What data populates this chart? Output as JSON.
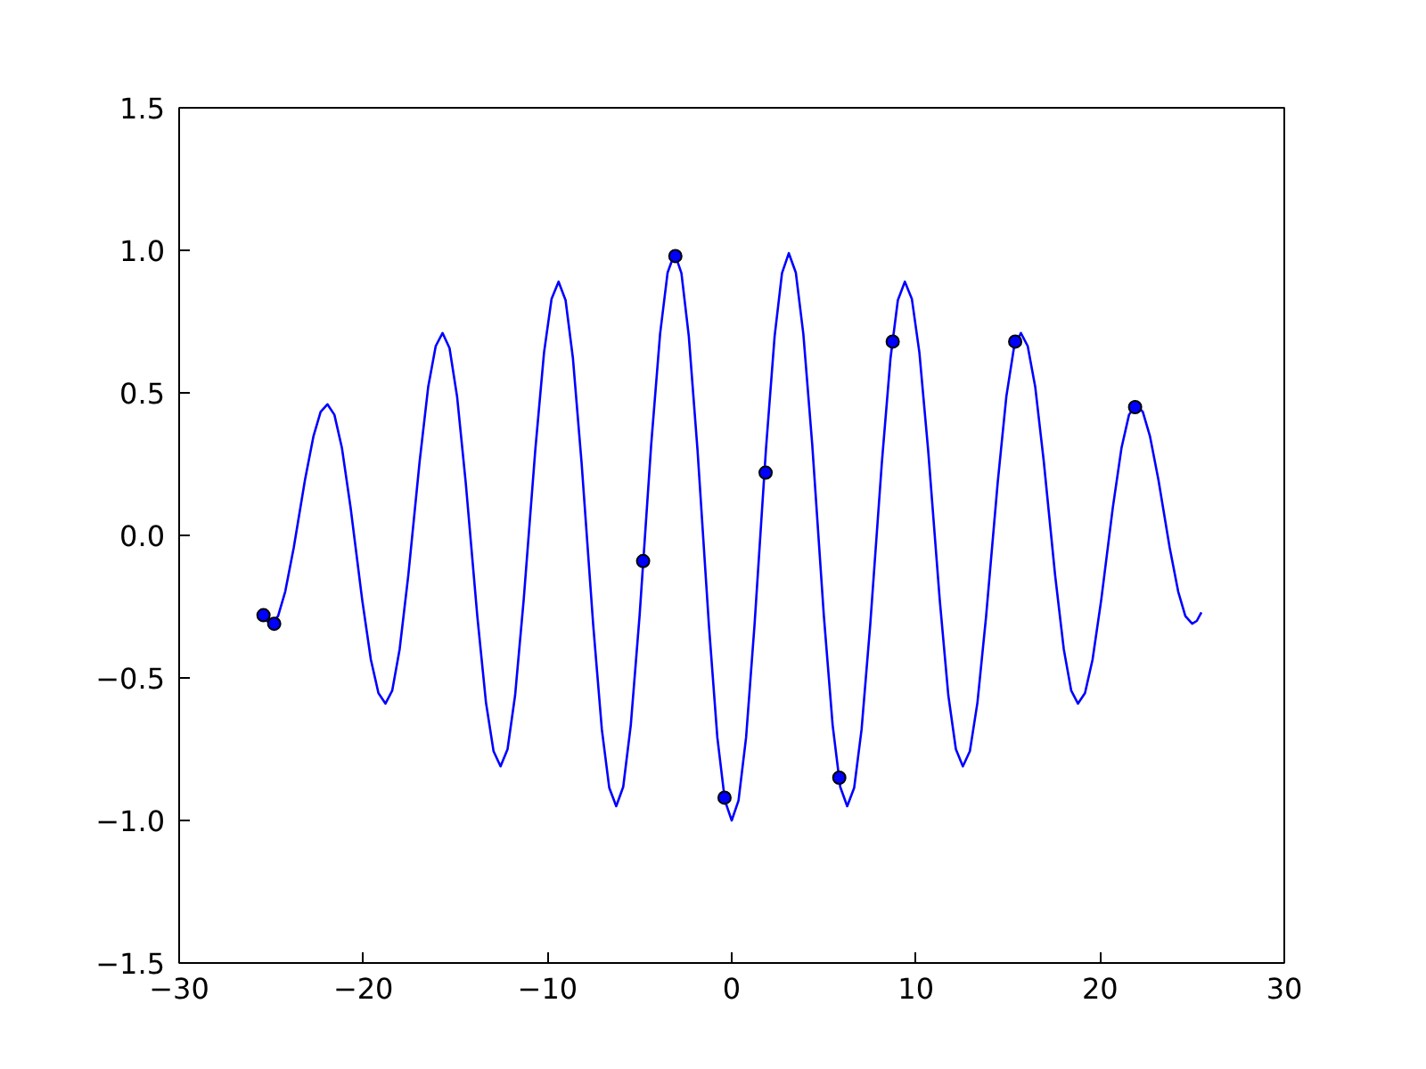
{
  "chart_data": {
    "type": "line",
    "xlim": [
      -30,
      30
    ],
    "ylim": [
      -1.5,
      1.5
    ],
    "xticks": [
      {
        "value": -30,
        "label": "−30"
      },
      {
        "value": -20,
        "label": "−20"
      },
      {
        "value": -10,
        "label": "−10"
      },
      0,
      10,
      20,
      30
    ],
    "yticks": [
      {
        "value": -1.5,
        "label": "−1.5"
      },
      {
        "value": -1,
        "label": "−1.0"
      },
      {
        "value": -0.5,
        "label": "−0.5"
      },
      {
        "value": 0,
        "label": "0.0"
      },
      0.5,
      {
        "value": 1,
        "label": "1.0"
      },
      1.5
    ],
    "grid": false,
    "series": [
      {
        "color": "#0000ff",
        "marker": "none",
        "line_style": "solid",
        "x": [
          -25.5,
          -25.25,
          -25.0,
          -24.63,
          -24.24,
          -23.78,
          -23.17,
          -22.71,
          -22.32,
          -21.95,
          -21.57,
          -21.16,
          -20.69,
          -20.06,
          -19.59,
          -19.18,
          -18.8,
          -18.43,
          -18.03,
          -17.56,
          -16.94,
          -16.48,
          -16.07,
          -15.7,
          -15.32,
          -14.91,
          -14.44,
          -13.81,
          -13.34,
          -12.93,
          -12.55,
          -12.17,
          -11.76,
          -11.29,
          -10.66,
          -10.19,
          -9.78,
          -9.4,
          -9.02,
          -8.62,
          -8.15,
          -7.52,
          -7.05,
          -6.65,
          -6.27,
          -5.89,
          -5.48,
          -5.0,
          -4.37,
          -3.89,
          -3.48,
          -3.1,
          -2.73,
          -2.33,
          -1.86,
          -1.24,
          -0.78,
          -0.37,
          0.0,
          0.37,
          0.78,
          1.24,
          1.86,
          2.33,
          2.73,
          3.1,
          3.48,
          3.89,
          4.37,
          5.0,
          5.48,
          5.89,
          6.27,
          6.65,
          7.05,
          7.52,
          8.15,
          8.62,
          9.02,
          9.4,
          9.78,
          10.19,
          10.66,
          11.29,
          11.76,
          12.17,
          12.55,
          12.93,
          13.34,
          13.81,
          14.44,
          14.91,
          15.32,
          15.7,
          16.07,
          16.48,
          16.94,
          17.56,
          18.03,
          18.43,
          18.8,
          19.18,
          19.59,
          20.06,
          20.69,
          21.16,
          21.57,
          21.95,
          22.32,
          22.71,
          23.17,
          23.78,
          24.24,
          24.63,
          25.0,
          25.25,
          25.5
        ],
        "values": [
          -0.27,
          -0.3,
          -0.31,
          -0.283,
          -0.197,
          -0.044,
          0.194,
          0.347,
          0.433,
          0.46,
          0.423,
          0.306,
          0.097,
          -0.227,
          -0.436,
          -0.553,
          -0.59,
          -0.544,
          -0.4,
          -0.141,
          0.261,
          0.52,
          0.664,
          0.71,
          0.657,
          0.487,
          0.185,
          -0.285,
          -0.587,
          -0.757,
          -0.81,
          -0.75,
          -0.561,
          -0.223,
          0.303,
          0.641,
          0.83,
          0.89,
          0.825,
          0.621,
          0.254,
          -0.314,
          -0.681,
          -0.885,
          -0.95,
          -0.882,
          -0.666,
          -0.28,
          0.32,
          0.706,
          0.922,
          0.99,
          0.92,
          0.699,
          0.303,
          -0.313,
          -0.709,
          -0.93,
          -1.0,
          -0.93,
          -0.709,
          -0.313,
          0.303,
          0.699,
          0.92,
          0.99,
          0.922,
          0.706,
          0.32,
          -0.28,
          -0.666,
          -0.882,
          -0.95,
          -0.885,
          -0.681,
          -0.314,
          0.254,
          0.621,
          0.825,
          0.89,
          0.83,
          0.641,
          0.303,
          -0.223,
          -0.561,
          -0.75,
          -0.81,
          -0.757,
          -0.587,
          -0.285,
          0.185,
          0.487,
          0.657,
          0.71,
          0.664,
          0.52,
          0.261,
          -0.141,
          -0.4,
          -0.544,
          -0.59,
          -0.553,
          -0.436,
          -0.227,
          0.097,
          0.306,
          0.423,
          0.46,
          0.433,
          0.347,
          0.194,
          -0.044,
          -0.197,
          -0.283,
          -0.31,
          -0.3,
          -0.27
        ]
      },
      {
        "type": "scatter",
        "color": "#0000ff",
        "marker": "circle",
        "x": [
          -25.42,
          -24.84,
          -4.81,
          -3.06,
          -0.39,
          1.84,
          5.84,
          8.74,
          15.39,
          21.9
        ],
        "values": [
          -0.28,
          -0.31,
          -0.09,
          0.98,
          -0.92,
          0.22,
          -0.85,
          0.68,
          0.68,
          0.45
        ]
      }
    ]
  }
}
